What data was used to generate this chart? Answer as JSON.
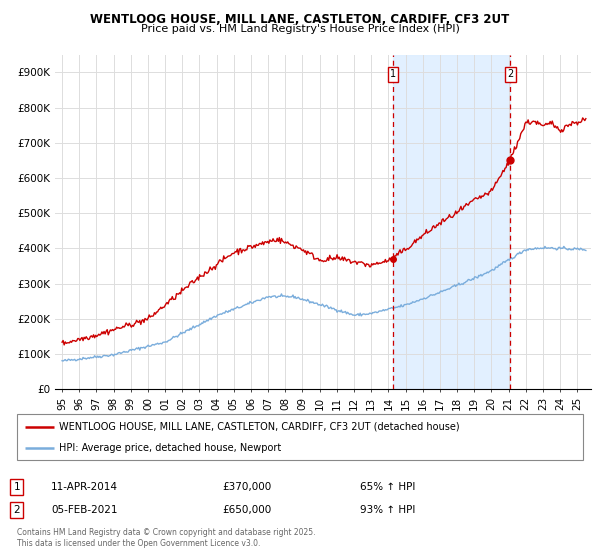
{
  "title1": "WENTLOOG HOUSE, MILL LANE, CASTLETON, CARDIFF, CF3 2UT",
  "title2": "Price paid vs. HM Land Registry's House Price Index (HPI)",
  "legend_house": "WENTLOOG HOUSE, MILL LANE, CASTLETON, CARDIFF, CF3 2UT (detached house)",
  "legend_hpi": "HPI: Average price, detached house, Newport",
  "annotation1_date": "11-APR-2014",
  "annotation1_price": "£370,000",
  "annotation1_hpi": "65% ↑ HPI",
  "annotation2_date": "05-FEB-2021",
  "annotation2_price": "£650,000",
  "annotation2_hpi": "93% ↑ HPI",
  "footer": "Contains HM Land Registry data © Crown copyright and database right 2025.\nThis data is licensed under the Open Government Licence v3.0.",
  "house_color": "#cc0000",
  "hpi_color": "#7aaddc",
  "vline_color": "#cc0000",
  "background_color": "#ffffff",
  "grid_color": "#dddddd",
  "shade_color": "#ddeeff",
  "ylim": [
    0,
    950000
  ],
  "yticks": [
    0,
    100000,
    200000,
    300000,
    400000,
    500000,
    600000,
    700000,
    800000,
    900000
  ],
  "ytick_labels": [
    "£0",
    "£100K",
    "£200K",
    "£300K",
    "£400K",
    "£500K",
    "£600K",
    "£700K",
    "£800K",
    "£900K"
  ],
  "marker1_x": 2014.27,
  "marker1_y": 370000,
  "marker2_x": 2021.09,
  "marker2_y": 650000,
  "xlim_left": 1994.6,
  "xlim_right": 2025.8
}
